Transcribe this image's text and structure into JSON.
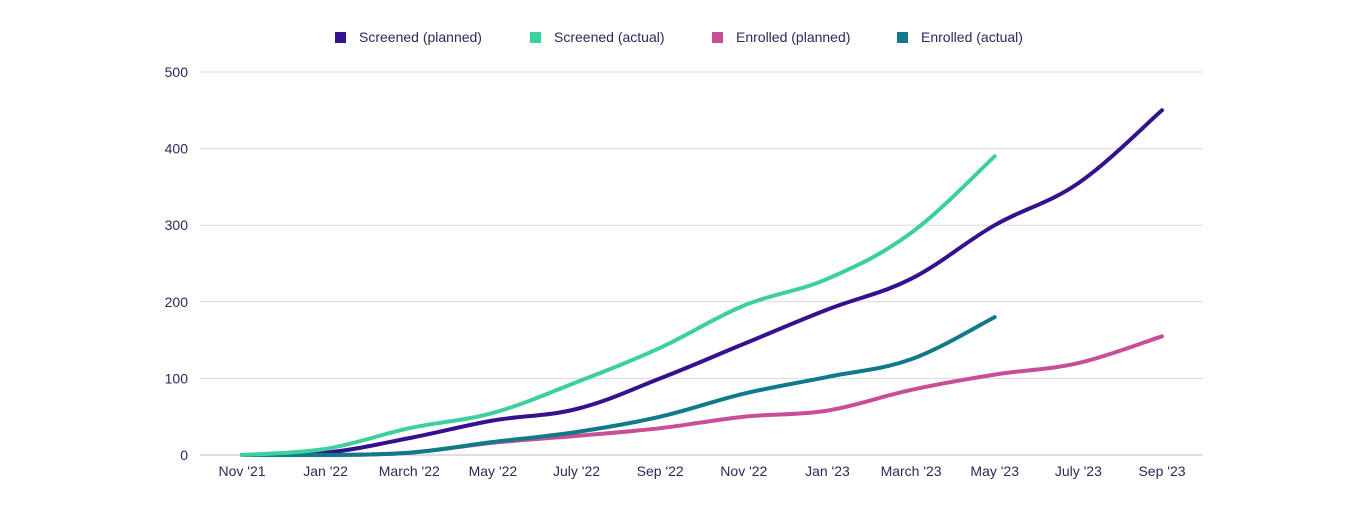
{
  "chart_data": {
    "type": "line",
    "title": "",
    "xlabel": "",
    "ylabel": "",
    "x": [
      "Nov '21",
      "Jan '22",
      "March '22",
      "May '22",
      "July '22",
      "Sep '22",
      "Nov '22",
      "Jan '23",
      "March '23",
      "May '23",
      "July '23",
      "Sep '23"
    ],
    "ylim": [
      0,
      500
    ],
    "yticks": [
      0,
      100,
      200,
      300,
      400,
      500
    ],
    "grid": true,
    "legend_position": "top-center",
    "series": [
      {
        "name": "Screened (planned)",
        "color": "#35118f",
        "values": [
          0,
          3,
          22,
          45,
          60,
          100,
          145,
          190,
          230,
          300,
          355,
          450
        ]
      },
      {
        "name": "Screened (actual)",
        "color": "#3ccf9f",
        "values": [
          0,
          8,
          35,
          55,
          95,
          140,
          195,
          230,
          290,
          390,
          null,
          null
        ]
      },
      {
        "name": "Enrolled (planned)",
        "color": "#c84f96",
        "values": [
          0,
          0,
          3,
          16,
          25,
          35,
          50,
          58,
          85,
          105,
          120,
          155
        ]
      },
      {
        "name": "Enrolled (actual)",
        "color": "#10798a",
        "values": [
          0,
          0,
          3,
          17,
          30,
          50,
          80,
          102,
          125,
          180,
          null,
          null
        ]
      }
    ]
  }
}
